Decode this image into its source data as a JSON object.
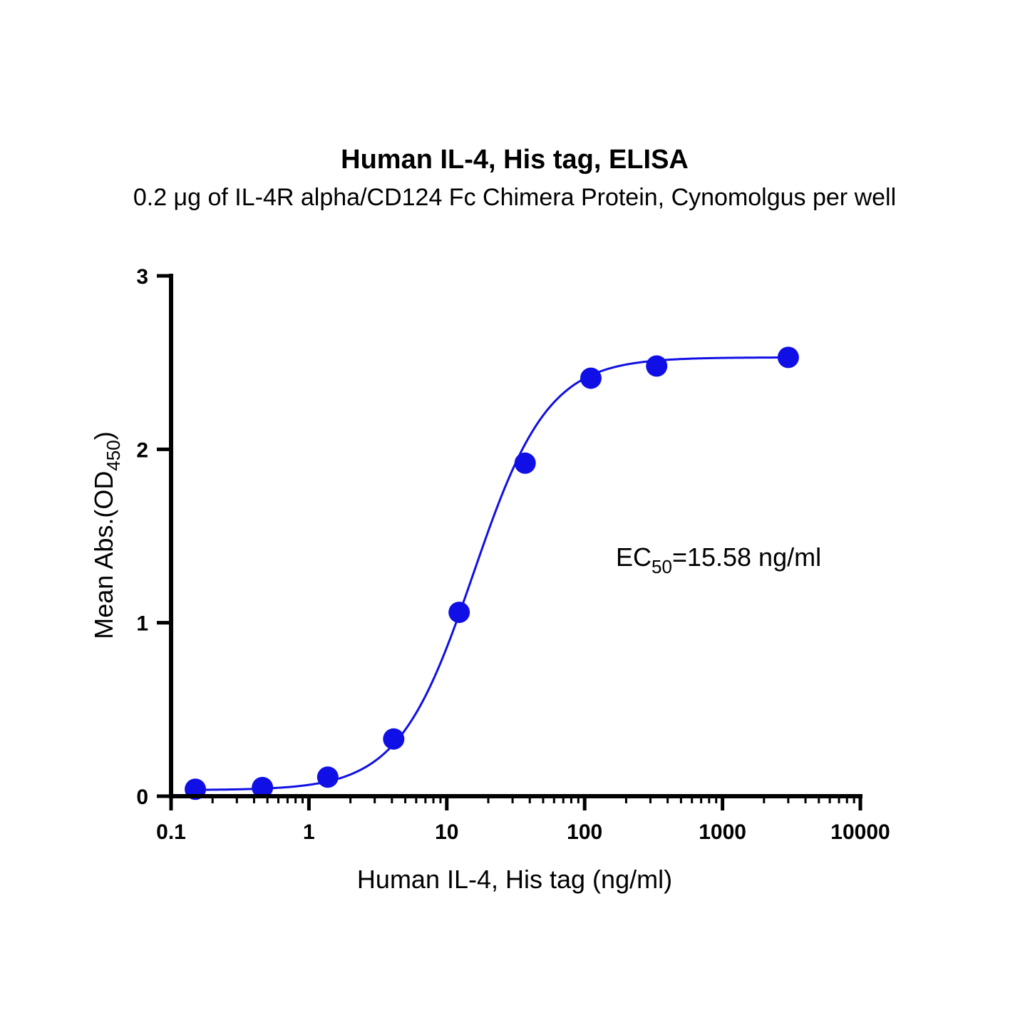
{
  "chart_data": {
    "type": "scatter",
    "title": "Human IL-4, His tag, ELISA",
    "subtitle": "0.2 μg of IL-4R alpha/CD124 Fc Chimera Protein, Cynomolgus per well",
    "xlabel": "Human IL-4, His tag (ng/ml)",
    "ylabel": {
      "main": "Mean Abs.(OD",
      "sub": "450",
      "close": ")"
    },
    "x_scale": "log",
    "xlim": [
      0.1,
      10000
    ],
    "ylim": [
      0,
      3
    ],
    "x_ticks": [
      0.1,
      1,
      10,
      100,
      1000,
      10000
    ],
    "x_tick_labels": [
      "0.1",
      "1",
      "10",
      "100",
      "1000",
      "10000"
    ],
    "y_ticks": [
      0,
      1,
      2,
      3
    ],
    "y_tick_labels": [
      "0",
      "1",
      "2",
      "3"
    ],
    "grid": false,
    "series": [
      {
        "x": [
          0.15,
          0.46,
          1.37,
          4.12,
          12.3,
          37,
          111,
          333,
          3000
        ],
        "y": [
          0.04,
          0.05,
          0.11,
          0.33,
          1.06,
          1.92,
          2.41,
          2.48,
          2.53
        ],
        "color": "#1010e6",
        "fit": "4PL"
      }
    ],
    "fit_params": {
      "bottom": 0.035,
      "top": 2.53,
      "ec50": 15.58,
      "hill": 1.6
    },
    "annotation": {
      "prefix": "EC",
      "sub": "50",
      "suffix": "=15.58 ng/ml"
    }
  }
}
